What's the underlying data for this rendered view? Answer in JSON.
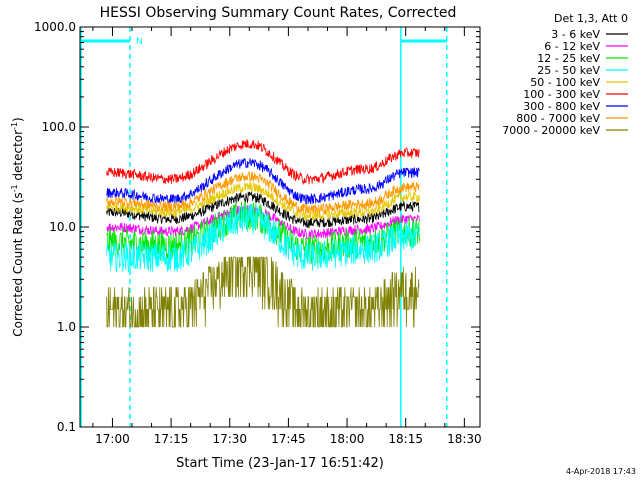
{
  "chart_data": {
    "type": "line",
    "title": "HESSI Observing Summary Count Rates, Corrected",
    "xlabel": "Start Time (23-Jan-17 16:51:42)",
    "ylabel_main": "Corrected Count Rate (s",
    "ylabel_sup1": "-1",
    "ylabel_mid": " detector",
    "ylabel_sup2": "-1",
    "ylabel_end": ")",
    "y_scale": "log",
    "ylim": [
      0.1,
      1000.0
    ],
    "xlim": [
      "16:51:42",
      "18:34:00"
    ],
    "x_ticks": [
      "17:00",
      "17:15",
      "17:30",
      "17:45",
      "18:00",
      "18:15",
      "18:30"
    ],
    "y_ticks": [
      "0.1",
      "1.0",
      "10.0",
      "100.0",
      "1000.0"
    ],
    "legend_title": "Det 1,3, Att 0",
    "legend_placement": "right",
    "footer_date": "4-Apr-2018 17:43",
    "annotation_N": "N",
    "data_start": "16:58:30",
    "data_end": "18:18:30",
    "night_intervals": [
      [
        "16:51:42",
        "17:04:30"
      ],
      [
        "18:13:30",
        "18:25:30"
      ]
    ],
    "series": [
      {
        "name": "3 - 6 keV",
        "color": "#000000",
        "values_at": {
          "17:00": 14,
          "17:15": 12,
          "17:35": 20,
          "17:50": 11,
          "18:05": 12,
          "18:15": 16
        }
      },
      {
        "name": "6 - 12 keV",
        "color": "#ff00ff",
        "values_at": {
          "17:00": 10,
          "17:15": 9,
          "17:35": 15,
          "17:50": 8.5,
          "18:05": 9.5,
          "18:15": 12
        }
      },
      {
        "name": "12 - 25 keV",
        "color": "#00e600",
        "values_at": {
          "17:00": 7,
          "17:15": 6.5,
          "17:35": 13,
          "17:50": 6,
          "18:05": 7,
          "18:15": 9
        }
      },
      {
        "name": "25 - 50 keV",
        "color": "#00ffff",
        "values_at": {
          "17:00": 5,
          "17:15": 5,
          "17:35": 12,
          "17:50": 5,
          "18:05": 6,
          "18:15": 8
        }
      },
      {
        "name": "50 - 100 keV",
        "color": "#e6c800",
        "values_at": {
          "17:00": 16,
          "17:15": 14,
          "17:35": 25,
          "17:50": 13,
          "18:05": 14,
          "18:15": 20
        }
      },
      {
        "name": "100 - 300 keV",
        "color": "#ff0000",
        "values_at": {
          "17:00": 35,
          "17:15": 30,
          "17:35": 68,
          "17:50": 30,
          "18:05": 38,
          "18:15": 55
        }
      },
      {
        "name": "300 - 800 keV",
        "color": "#0000ff",
        "values_at": {
          "17:00": 22,
          "17:15": 19,
          "17:35": 44,
          "17:50": 19,
          "18:05": 24,
          "18:15": 35
        }
      },
      {
        "name": "800 - 7000 keV",
        "color": "#ff9900",
        "values_at": {
          "17:00": 18,
          "17:15": 16,
          "17:35": 32,
          "17:50": 15,
          "18:05": 17,
          "18:15": 25
        }
      },
      {
        "name": "7000 - 20000 keV",
        "color": "#808000",
        "values_at": {
          "17:00": 1.5,
          "17:15": 1.5,
          "17:35": 4.5,
          "17:50": 1.5,
          "18:05": 1.5,
          "18:15": 2.5
        }
      }
    ]
  }
}
